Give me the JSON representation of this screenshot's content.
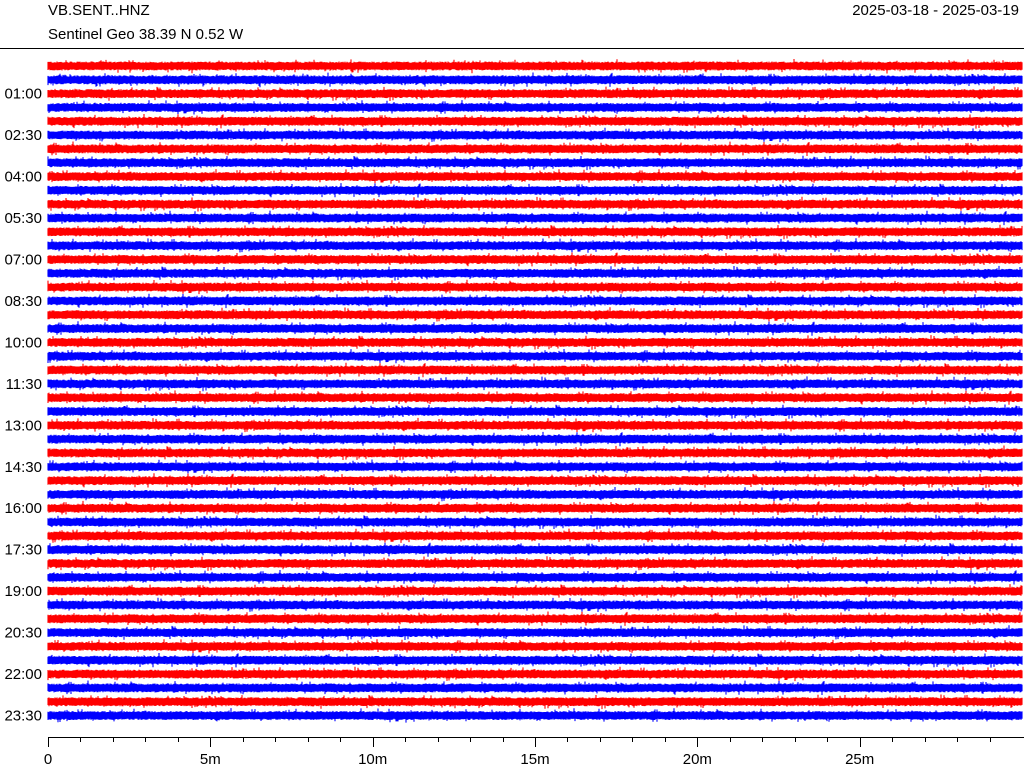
{
  "header": {
    "channel": "VB.SENT..HNZ",
    "station": "Sentinel Geo  38.39 N 0.52 W",
    "date_range": "2025-03-18 - 2025-03-19"
  },
  "chart_data": {
    "type": "line",
    "subtype": "helicorder",
    "row_duration_minutes": 30,
    "row_count": 48,
    "trace_colors": [
      "#ff0000",
      "#0000ff"
    ],
    "y_tick_labels": [
      "01:00",
      "02:30",
      "04:00",
      "05:30",
      "07:00",
      "08:30",
      "10:00",
      "11:30",
      "13:00",
      "14:30",
      "16:00",
      "17:30",
      "19:00",
      "20:30",
      "22:00",
      "23:30"
    ],
    "x_tick_labels": [
      "0",
      "5m",
      "10m",
      "15m",
      "20m",
      "25m"
    ],
    "xlim_minutes": [
      0,
      30
    ],
    "x_minor_tick_minutes": 1,
    "grid": false
  }
}
